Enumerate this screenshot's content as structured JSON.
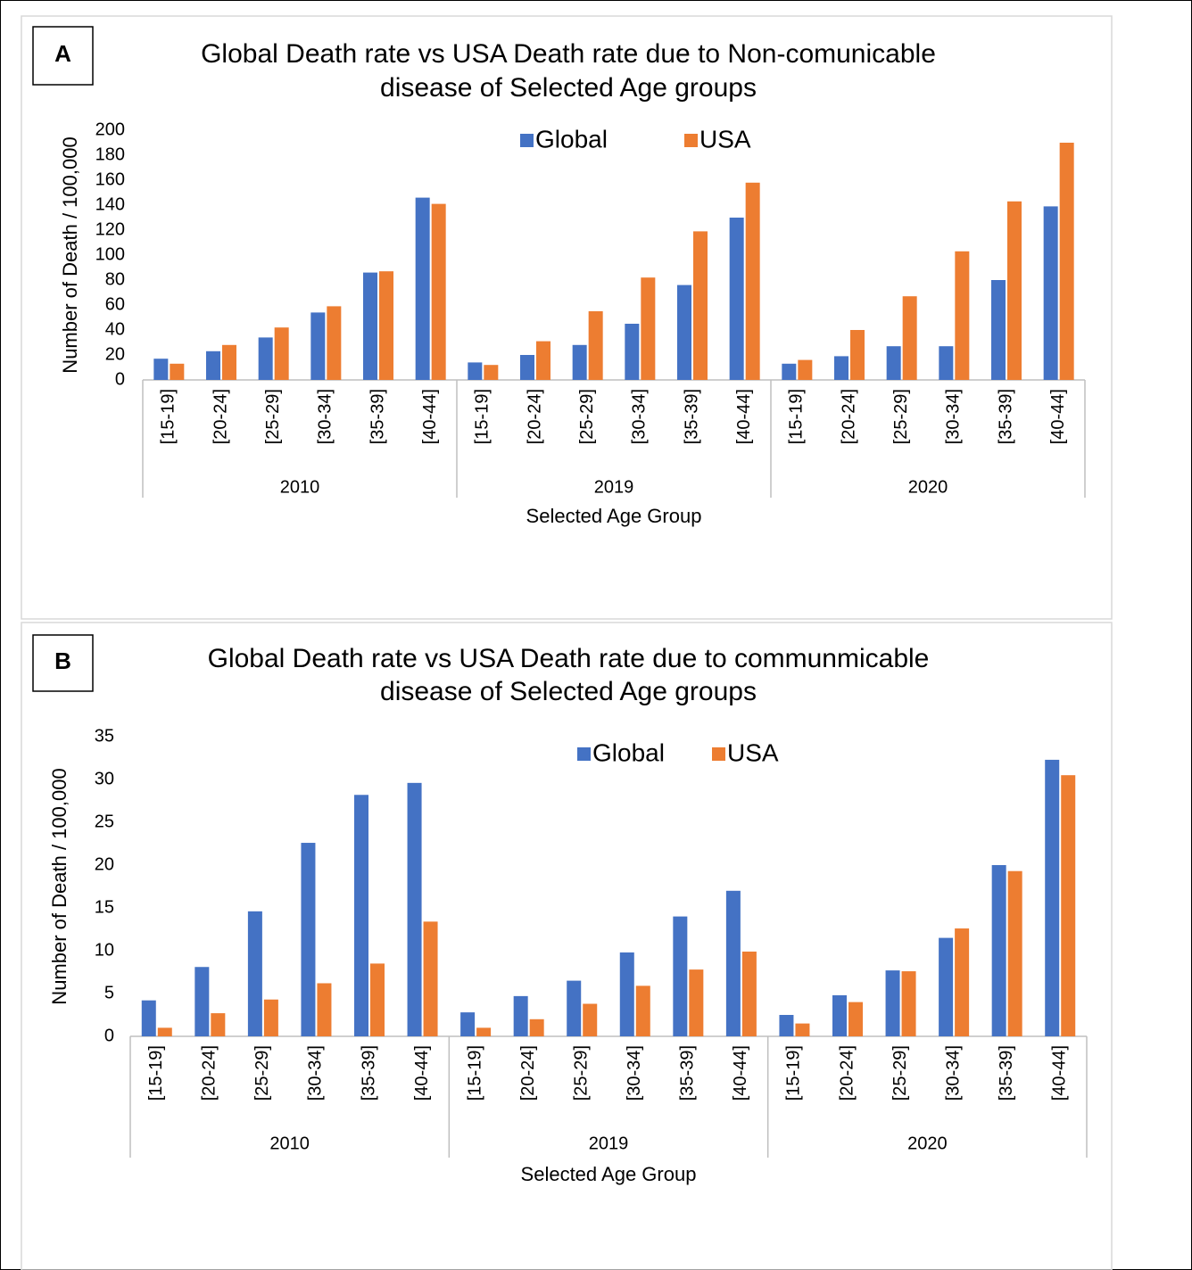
{
  "chart_data": [
    {
      "type": "bar",
      "panel_label": "A",
      "title": [
        "Global Death rate vs USA Death rate due to Non-comunicable",
        "disease of Selected Age groups"
      ],
      "x_label": "Selected Age Group",
      "y_label": "Number of Death / 100,000",
      "category_groups": [
        "2010",
        "2019",
        "2020"
      ],
      "categories": [
        "[15-19]",
        "[20-24]",
        "[25-29]",
        "[30-34]",
        "[35-39]",
        "[40-44]",
        "[15-19]",
        "[20-24]",
        "[25-29]",
        "[30-34]",
        "[35-39]",
        "[40-44]",
        "[15-19]",
        "[20-24]",
        "[25-29]",
        "[30-34]",
        "[35-39]",
        "[40-44]"
      ],
      "series": [
        {
          "name": "Global",
          "color": "#4472c4",
          "values": [
            17,
            23,
            34,
            54,
            86,
            146,
            14,
            20,
            28,
            45,
            76,
            130,
            13,
            19,
            27,
            27,
            80,
            139
          ]
        },
        {
          "name": "USA",
          "color": "#ed7d31",
          "values": [
            13,
            28,
            42,
            59,
            87,
            141,
            12,
            31,
            55,
            82,
            119,
            158,
            16,
            40,
            67,
            103,
            143,
            190
          ]
        }
      ],
      "ylim": [
        0,
        200
      ],
      "yticks": [
        0,
        20,
        40,
        60,
        80,
        100,
        120,
        140,
        160,
        180,
        200
      ]
    },
    {
      "type": "bar",
      "panel_label": "B",
      "title": [
        "Global Death rate vs USA Death rate due to communmicable",
        "disease of Selected Age groups"
      ],
      "x_label": "Selected Age Group",
      "y_label": "Number of Death / 100,000",
      "category_groups": [
        "2010",
        "2019",
        "2020"
      ],
      "categories": [
        "[15-19]",
        "[20-24]",
        "[25-29]",
        "[30-34]",
        "[35-39]",
        "[40-44]",
        "[15-19]",
        "[20-24]",
        "[25-29]",
        "[30-34]",
        "[35-39]",
        "[40-44]",
        "[15-19]",
        "[20-24]",
        "[25-29]",
        "[30-34]",
        "[35-39]",
        "[40-44]"
      ],
      "series": [
        {
          "name": "Global",
          "color": "#4472c4",
          "values": [
            4.2,
            8.1,
            14.6,
            22.6,
            28.2,
            29.6,
            2.8,
            4.7,
            6.5,
            9.8,
            14.0,
            17.0,
            2.5,
            4.8,
            7.7,
            11.5,
            20.0,
            32.3
          ]
        },
        {
          "name": "USA",
          "color": "#ed7d31",
          "values": [
            1.0,
            2.7,
            4.3,
            6.2,
            8.5,
            13.4,
            1.0,
            2.0,
            3.8,
            5.9,
            7.8,
            9.9,
            1.5,
            4.0,
            7.6,
            12.6,
            19.3,
            30.5
          ]
        }
      ],
      "ylim": [
        0,
        35
      ],
      "yticks": [
        0,
        5,
        10,
        15,
        20,
        25,
        30,
        35
      ]
    }
  ]
}
